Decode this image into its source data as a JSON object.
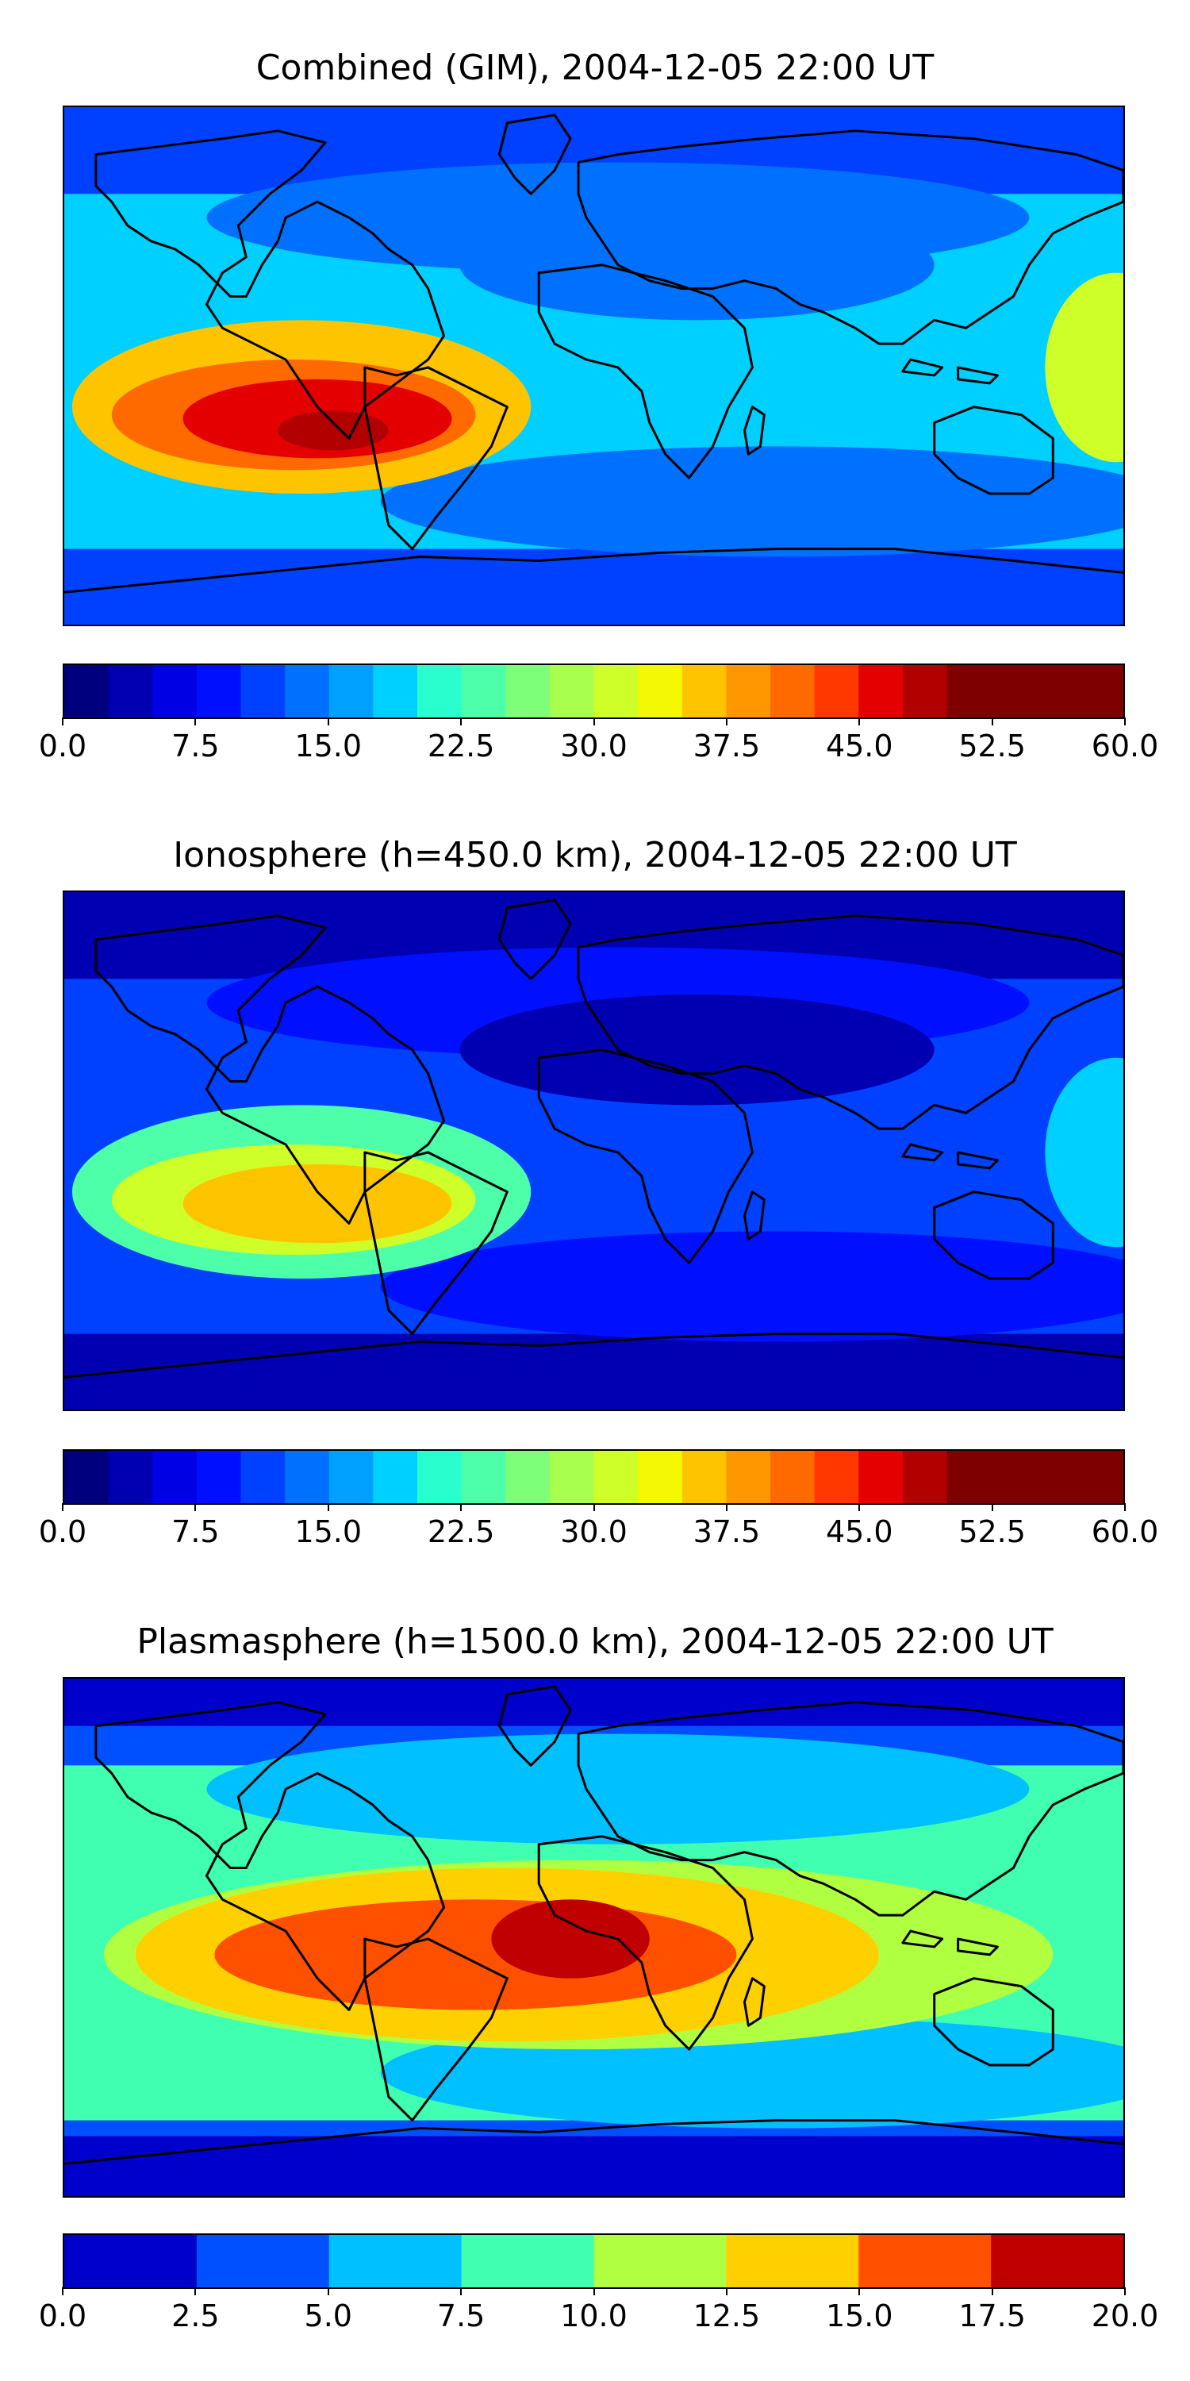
{
  "panels": [
    {
      "title": "Combined (GIM), 2004-12-05 22:00 UT",
      "colorbar": {
        "vmin": 0,
        "vmax": 60,
        "step": 2.5,
        "tick_labels": [
          "0.0",
          "7.5",
          "15.0",
          "22.5",
          "30.0",
          "37.5",
          "45.0",
          "52.5",
          "60.0"
        ],
        "colors": [
          "#00007f",
          "#0000b2",
          "#0000e5",
          "#0010ff",
          "#0040ff",
          "#0070ff",
          "#00a0ff",
          "#00d0ff",
          "#29ffce",
          "#4dffa9",
          "#7dff7a",
          "#a9ff4d",
          "#ceff29",
          "#f4f802",
          "#ffc400",
          "#ff9800",
          "#ff6a00",
          "#ff3800",
          "#e50000",
          "#b20000",
          "#7f0000",
          "#7f0000",
          "#7f0000",
          "#7f0000"
        ]
      },
      "map_colors": {
        "bg": "#00d0ff",
        "c1": "#0070ff",
        "c2": "#0040ff",
        "c3": "#29ffce",
        "hot1": "#ceff29",
        "hot2": "#ffc400",
        "hot3": "#ff6a00",
        "hot4": "#e50000",
        "hot5": "#b20000"
      }
    },
    {
      "title": "Ionosphere  (h=450.0 km), 2004-12-05 22:00 UT",
      "colorbar": {
        "vmin": 0,
        "vmax": 60,
        "step": 2.5,
        "tick_labels": [
          "0.0",
          "7.5",
          "15.0",
          "22.5",
          "30.0",
          "37.5",
          "45.0",
          "52.5",
          "60.0"
        ],
        "colors": [
          "#00007f",
          "#0000b2",
          "#0000e5",
          "#0010ff",
          "#0040ff",
          "#0070ff",
          "#00a0ff",
          "#00d0ff",
          "#29ffce",
          "#4dffa9",
          "#7dff7a",
          "#a9ff4d",
          "#ceff29",
          "#f4f802",
          "#ffc400",
          "#ff9800",
          "#ff6a00",
          "#ff3800",
          "#e50000",
          "#b20000",
          "#7f0000",
          "#7f0000",
          "#7f0000",
          "#7f0000"
        ]
      },
      "map_colors": {
        "bg": "#0040ff",
        "c1": "#0010ff",
        "c2": "#0000b2",
        "c3": "#00a0ff",
        "hot1": "#00d0ff",
        "hot2": "#4dffa9",
        "hot3": "#ceff29",
        "hot4": "#ffc400",
        "hot5": "#ffc400"
      }
    },
    {
      "title": "Plasmasphere (h=1500.0 km), 2004-12-05 22:00 UT",
      "colorbar": {
        "vmin": 0,
        "vmax": 20,
        "step": 2.5,
        "tick_labels": [
          "0.0",
          "2.5",
          "5.0",
          "7.5",
          "10.0",
          "12.5",
          "15.0",
          "17.5",
          "20.0"
        ],
        "colors": [
          "#0000cc",
          "#0050ff",
          "#00c0ff",
          "#40ffb0",
          "#b0ff40",
          "#ffd000",
          "#ff5000",
          "#c00000"
        ]
      },
      "map_colors": {
        "bg": "#40ffb0",
        "c1": "#00c0ff",
        "c2": "#0050ff",
        "c3": "#0000cc",
        "hot1": "#b0ff40",
        "hot2": "#ffd000",
        "hot3": "#ff5000",
        "hot4": "#c00000",
        "hot5": "#c00000"
      }
    }
  ]
}
